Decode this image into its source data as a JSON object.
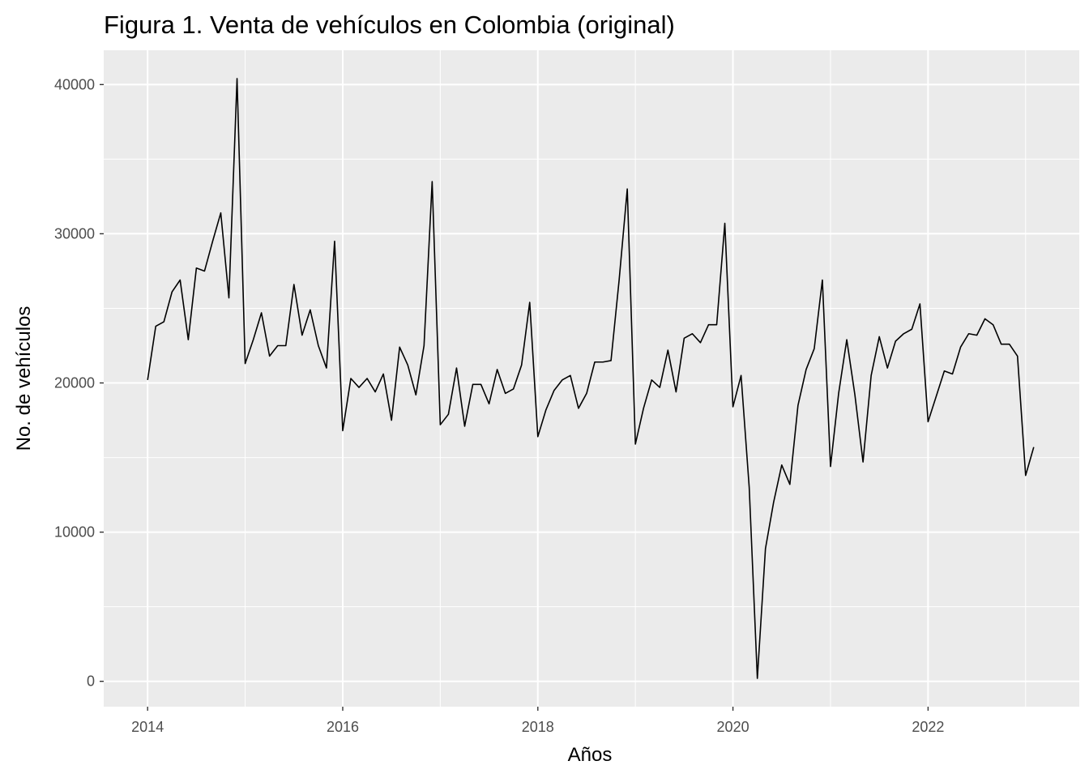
{
  "chart_data": {
    "type": "line",
    "title": "Figura 1. Venta de vehículos en Colombia (original)",
    "xlabel": "Años",
    "ylabel": "No. de vehículos",
    "xlim": [
      2013.55,
      2023.55
    ],
    "ylim": [
      -1700,
      42300
    ],
    "x_ticks": [
      2014,
      2016,
      2018,
      2020,
      2022
    ],
    "y_ticks": [
      0,
      10000,
      20000,
      30000,
      40000
    ],
    "grid": true,
    "background": "#ebebeb",
    "grid_color": "#ffffff",
    "line_color": "#000000",
    "series": [
      {
        "start_year": 2014,
        "frequency": "monthly",
        "values": [
          20200,
          23800,
          24100,
          26100,
          26900,
          22900,
          27700,
          27500,
          29500,
          31400,
          25700,
          40400,
          21300,
          22900,
          24700,
          21800,
          22500,
          22500,
          26600,
          23200,
          24900,
          22500,
          21000,
          29500,
          16800,
          20300,
          19700,
          20300,
          19400,
          20600,
          17500,
          22400,
          21200,
          19200,
          22500,
          33500,
          17200,
          17900,
          21000,
          17100,
          19900,
          19900,
          18600,
          20900,
          19300,
          19600,
          21200,
          25400,
          16400,
          18200,
          19500,
          20200,
          20500,
          18300,
          19300,
          21400,
          21400,
          21500,
          26900,
          33000,
          15900,
          18300,
          20200,
          19700,
          22200,
          19400,
          23000,
          23300,
          22700,
          23900,
          23900,
          30700,
          18400,
          20500,
          13000,
          200,
          8900,
          12000,
          14500,
          13200,
          18500,
          20900,
          22300,
          26900,
          14400,
          19300,
          22900,
          19200,
          14700,
          20500,
          23100,
          21000,
          22800,
          23300,
          23600,
          25300,
          17400,
          19100,
          20800,
          20600,
          22400,
          23300,
          23200,
          24300,
          23900,
          22600,
          22600,
          21800,
          13800,
          15700
        ]
      }
    ]
  }
}
